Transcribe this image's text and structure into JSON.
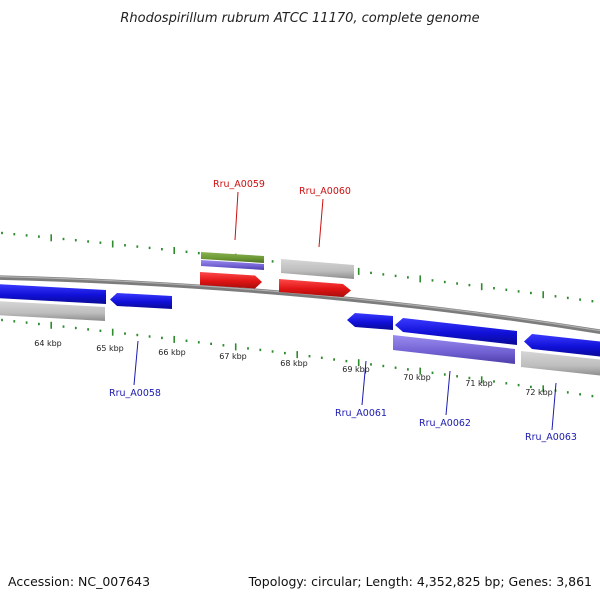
{
  "header": {
    "title": "Rhodospirillum rubrum ATCC 11170, complete genome"
  },
  "footer": {
    "accession": "Accession: NC_007643",
    "summary": "Topology: circular; Length: 4,352,825 bp; Genes: 3,861"
  },
  "scale": {
    "unit": "kbp",
    "labels": [
      "64 kbp",
      "65 kbp",
      "66 kbp",
      "67 kbp",
      "68 kbp",
      "69 kbp",
      "70 kbp",
      "71 kbp",
      "72 kbp"
    ]
  },
  "genes": [
    {
      "label": "Rru_A0058",
      "strand": "minus",
      "color": "#1515d0"
    },
    {
      "label": "Rru_A0059",
      "strand": "plus",
      "color": "#ea1c1c"
    },
    {
      "label": "Rru_A0060",
      "strand": "plus",
      "color": "#ea1c1c"
    },
    {
      "label": "Rru_A0061",
      "strand": "minus",
      "color": "#1515d0"
    },
    {
      "label": "Rru_A0062",
      "strand": "minus",
      "color": "#1515d0"
    },
    {
      "label": "Rru_A0063",
      "strand": "minus",
      "color": "#1515d0"
    }
  ],
  "colors": {
    "backbone": "#8a8a8a",
    "cds_plus": "#ea1c1c",
    "cds_minus": "#1515d0",
    "feature_gray": "#bcbcbc",
    "feature_purple": "#7a6ad8",
    "feature_green": "#6e9a38",
    "ticks": "#2e8b2e",
    "label_plus": "#cc1111",
    "label_minus": "#1a1ab0"
  }
}
